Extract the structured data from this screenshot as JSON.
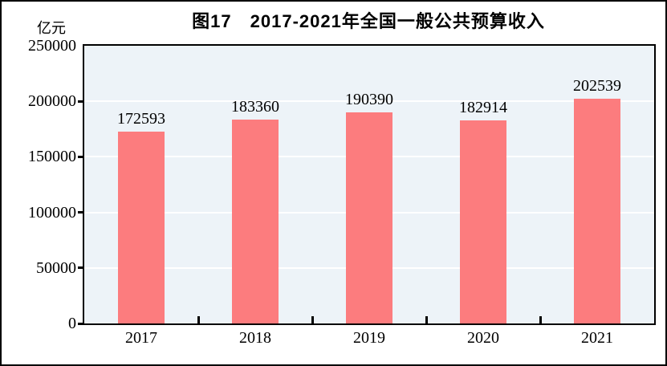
{
  "colors": {
    "bar": "#fc7c7e",
    "plot_background": "#edf3f8",
    "gridline": "#ffffff",
    "axis": "#000000",
    "text": "#000000"
  },
  "chart_data": {
    "type": "bar",
    "title": "图17　2017-2021年全国一般公共预算收入",
    "categories": [
      "2017",
      "2018",
      "2019",
      "2020",
      "2021"
    ],
    "values": [
      172593,
      183360,
      190390,
      182914,
      202539
    ],
    "xlabel": "",
    "ylabel": "亿元",
    "ylim": [
      0,
      250000
    ],
    "yticks": [
      0,
      50000,
      100000,
      150000,
      200000,
      250000
    ],
    "ytick_labels": [
      "0",
      "50000",
      "100000",
      "150000",
      "200000",
      "250000"
    ],
    "grid": true,
    "legend": false,
    "data_labels_shown": true
  }
}
